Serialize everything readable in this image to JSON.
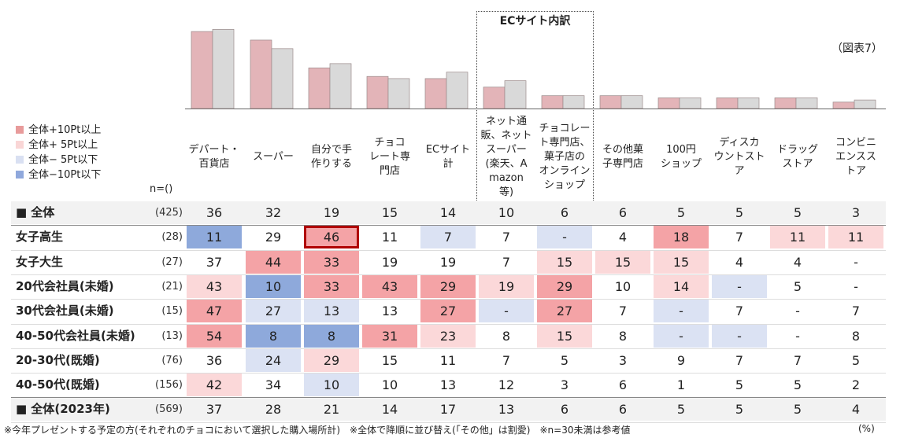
{
  "figure_tag": "（図表7）",
  "ec_section_label": "ECサイト内訳",
  "n_header": "n=()",
  "legend": [
    {
      "label": "全体+10Pt以上",
      "color": "#e89b9b"
    },
    {
      "label": "全体+ 5Pt以上",
      "color": "#f9d6d6"
    },
    {
      "label": "全体− 5Pt以下",
      "color": "#d9e0f2"
    },
    {
      "label": "全体−10Pt以下",
      "color": "#8fa8dc"
    }
  ],
  "colors": {
    "bar_current": "#e3b4b8",
    "bar_2023": "#d9d9d9",
    "bar_border": "#9a8a8a",
    "plus10": "#f4a3a6",
    "plus5": "#fbd8d9",
    "minus5": "#dbe2f3",
    "minus10": "#8ea9db",
    "highlight_border": "#b00000",
    "total_row_bg": "#f2f2f2"
  },
  "footnote": "※今年プレゼントする予定の方(それぞれのチョコにおいて選択した購入場所計)　※全体で降順に並び替え(「その他」は割愛)　※n=30未満は参考値",
  "unit": "(%)",
  "chart_data": {
    "type": "table",
    "categories": [
      "デパート・\n百貨店",
      "スーパー",
      "自分で手\n作りする",
      "チョコ\nレート専\n門店",
      "ECサイト\n計",
      "ネット通\n販、ネット\nスーパー\n(楽天、A\nmazon\n等)",
      "チョコレー\nト専門店、\n菓子店の\nオンライン\nショップ",
      "その他菓\n子専門店",
      "100円\nショップ",
      "ディスカ\nウントスト\nア",
      "ドラッグ\nストア",
      "コンビニ\nエンスス\nトア"
    ],
    "bar_series": [
      {
        "values": [
          36,
          32,
          19,
          15,
          14,
          10,
          6,
          6,
          5,
          5,
          5,
          3
        ]
      },
      {
        "values": [
          37,
          28,
          21,
          14,
          17,
          13,
          6,
          6,
          5,
          5,
          5,
          4
        ]
      }
    ],
    "rows": [
      {
        "label": "■ 全体",
        "n": "(425)",
        "values": [
          "36",
          "32",
          "19",
          "15",
          "14",
          "10",
          "6",
          "6",
          "5",
          "5",
          "5",
          "3"
        ],
        "shade": [
          "",
          "",
          "",
          "",
          "",
          "",
          "",
          "",
          "",
          "",
          "",
          ""
        ],
        "total": true
      },
      {
        "label": "女子高生",
        "n": "(28)",
        "values": [
          "11",
          "29",
          "46",
          "11",
          "7",
          "7",
          "-",
          "4",
          "18",
          "7",
          "11",
          "11"
        ],
        "shade": [
          "m10",
          "",
          "p10",
          "",
          "m5",
          "",
          "m5",
          "",
          "p10",
          "",
          "p5",
          "p5"
        ]
      },
      {
        "label": "女子大生",
        "n": "(27)",
        "values": [
          "37",
          "44",
          "33",
          "19",
          "19",
          "7",
          "15",
          "15",
          "15",
          "4",
          "4",
          "-"
        ],
        "shade": [
          "",
          "p10",
          "p10",
          "",
          "",
          "",
          "p5",
          "p5",
          "p5",
          "",
          "",
          ""
        ]
      },
      {
        "label": "20代会社員(未婚)",
        "n": "(21)",
        "values": [
          "43",
          "10",
          "33",
          "43",
          "29",
          "19",
          "29",
          "10",
          "14",
          "-",
          "5",
          "-"
        ],
        "shade": [
          "p5",
          "m10",
          "p10",
          "p10",
          "p10",
          "p5",
          "p10",
          "",
          "p5",
          "m5",
          "",
          ""
        ]
      },
      {
        "label": "30代会社員(未婚)",
        "n": "(15)",
        "values": [
          "47",
          "27",
          "13",
          "13",
          "27",
          "-",
          "27",
          "7",
          "-",
          "7",
          "-",
          "7"
        ],
        "shade": [
          "p10",
          "m5",
          "m5",
          "",
          "p10",
          "m5",
          "p10",
          "",
          "m5",
          "",
          "",
          ""
        ]
      },
      {
        "label": "40-50代会社員(未婚)",
        "n": "(13)",
        "values": [
          "54",
          "8",
          "8",
          "31",
          "23",
          "8",
          "15",
          "8",
          "-",
          "-",
          "-",
          "8"
        ],
        "shade": [
          "p10",
          "m10",
          "m10",
          "p10",
          "p5",
          "",
          "p5",
          "",
          "m5",
          "m5",
          "",
          ""
        ]
      },
      {
        "label": "20-30代(既婚)",
        "n": "(76)",
        "values": [
          "36",
          "24",
          "29",
          "15",
          "11",
          "7",
          "5",
          "3",
          "9",
          "7",
          "7",
          "5"
        ],
        "shade": [
          "",
          "m5",
          "p5",
          "",
          "",
          "",
          "",
          "",
          "",
          "",
          "",
          ""
        ]
      },
      {
        "label": "40-50代(既婚)",
        "n": "(156)",
        "values": [
          "42",
          "34",
          "10",
          "10",
          "13",
          "12",
          "3",
          "6",
          "1",
          "5",
          "5",
          "2"
        ],
        "shade": [
          "p5",
          "",
          "m5",
          "",
          "",
          "",
          "",
          "",
          "",
          "",
          "",
          ""
        ]
      },
      {
        "label": "■ 全体(2023年)",
        "n": "(569)",
        "values": [
          "37",
          "28",
          "21",
          "14",
          "17",
          "13",
          "6",
          "6",
          "5",
          "5",
          "5",
          "4"
        ],
        "shade": [
          "",
          "",
          "",
          "",
          "",
          "",
          "",
          "",
          "",
          "",
          "",
          ""
        ],
        "total": true
      }
    ],
    "highlight": {
      "row": 1,
      "col": 2
    },
    "ylim": [
      0,
      40
    ]
  }
}
